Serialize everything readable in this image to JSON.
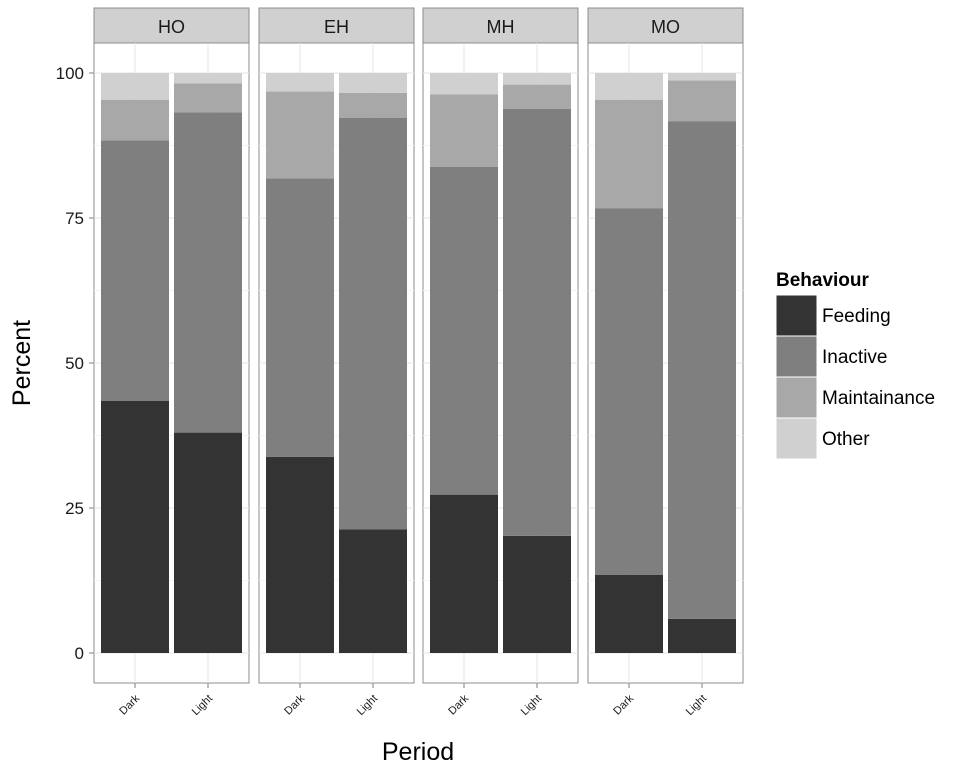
{
  "chart_data": {
    "type": "bar",
    "stacked": true,
    "facets": [
      "HO",
      "EH",
      "MH",
      "MO"
    ],
    "categories": [
      "Dark",
      "Light"
    ],
    "xlabel": "Period",
    "ylabel": "Percent",
    "ylim": [
      0,
      100
    ],
    "yticks": [
      "0",
      "25",
      "50",
      "75",
      "100"
    ],
    "grid": true,
    "legend_title": "Behaviour",
    "legend_position": "right",
    "series": [
      {
        "name": "Feeding",
        "color": "#333333",
        "values": {
          "HO": [
            43.5,
            38
          ],
          "EH": [
            33.8,
            21.3
          ],
          "MH": [
            27.3,
            20.2
          ],
          "MO": [
            13.5,
            5.9
          ]
        }
      },
      {
        "name": "Inactive",
        "color": "#7f7f7f",
        "values": {
          "HO": [
            44.9,
            55.2
          ],
          "EH": [
            48,
            71
          ],
          "MH": [
            56.5,
            73.6
          ],
          "MO": [
            63.2,
            85.8
          ]
        }
      },
      {
        "name": "Maintainance",
        "color": "#a8a8a8",
        "values": {
          "HO": [
            7,
            5
          ],
          "EH": [
            15,
            4.3
          ],
          "MH": [
            12.5,
            4.2
          ],
          "MO": [
            18.7,
            7
          ]
        }
      },
      {
        "name": "Other",
        "color": "#d0d0d0",
        "values": {
          "HO": [
            4.6,
            1.8
          ],
          "EH": [
            3.2,
            3.4
          ],
          "MH": [
            3.7,
            2
          ],
          "MO": [
            4.6,
            1.3
          ]
        }
      }
    ]
  }
}
